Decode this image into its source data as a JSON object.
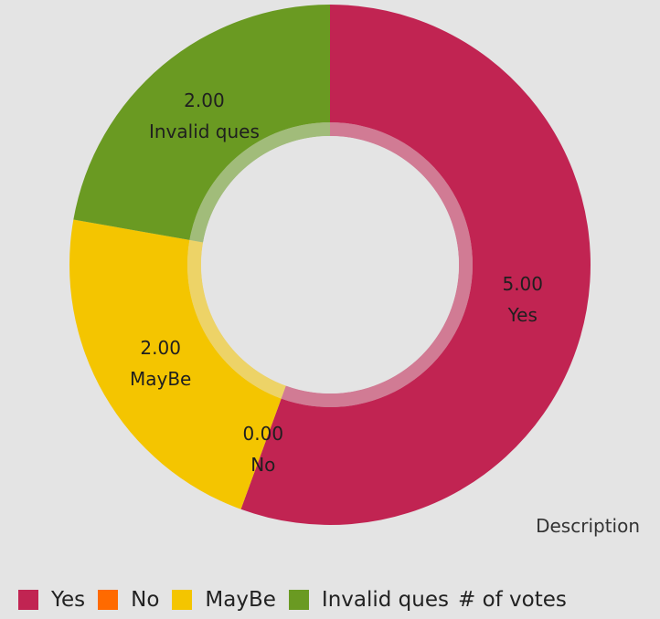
{
  "chart_data": {
    "type": "pie",
    "variant": "donut",
    "title": "",
    "series_name": "# of votes",
    "description": "Description",
    "value_format": "0.00",
    "slices": [
      {
        "label": "Yes",
        "value": 5.0,
        "color": "#c12452"
      },
      {
        "label": "No",
        "value": 0.0,
        "color": "#ff6a00"
      },
      {
        "label": "MayBe",
        "value": 2.0,
        "color": "#f4c500"
      },
      {
        "label": "Invalid ques",
        "value": 2.0,
        "color": "#6a9a22"
      }
    ],
    "legend_position": "bottom-left"
  },
  "colors": {
    "background": "#e4e4e4",
    "hole": "#e4e4e4",
    "inner_ring": "translucent"
  }
}
